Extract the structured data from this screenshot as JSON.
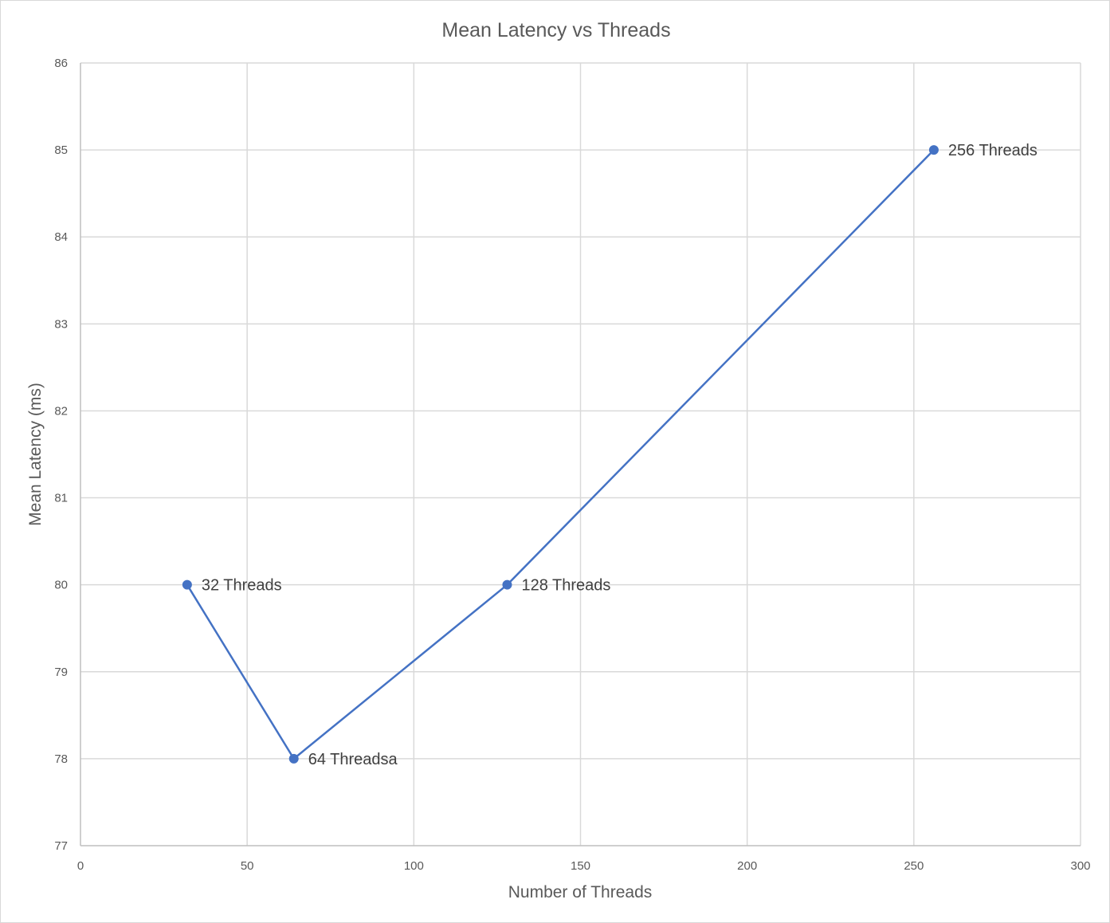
{
  "chart_data": {
    "type": "scatter",
    "title": "Mean Latency vs Threads",
    "xlabel": "Number of Threads",
    "ylabel": "Mean Latency (ms)",
    "xlim": [
      0,
      300
    ],
    "ylim": [
      77,
      86
    ],
    "xticks": [
      0,
      50,
      100,
      150,
      200,
      250,
      300
    ],
    "yticks": [
      77,
      78,
      79,
      80,
      81,
      82,
      83,
      84,
      85,
      86
    ],
    "grid": true,
    "legend": "none",
    "series": [
      {
        "color": "#4472c4",
        "lines": true,
        "markers": true,
        "points": [
          {
            "x": 32,
            "y": 80,
            "label": "32 Threads"
          },
          {
            "x": 64,
            "y": 78,
            "label": "64 Threadsa"
          },
          {
            "x": 128,
            "y": 80,
            "label": "128 Threads"
          },
          {
            "x": 256,
            "y": 85,
            "label": "256 Threads"
          }
        ]
      }
    ]
  }
}
